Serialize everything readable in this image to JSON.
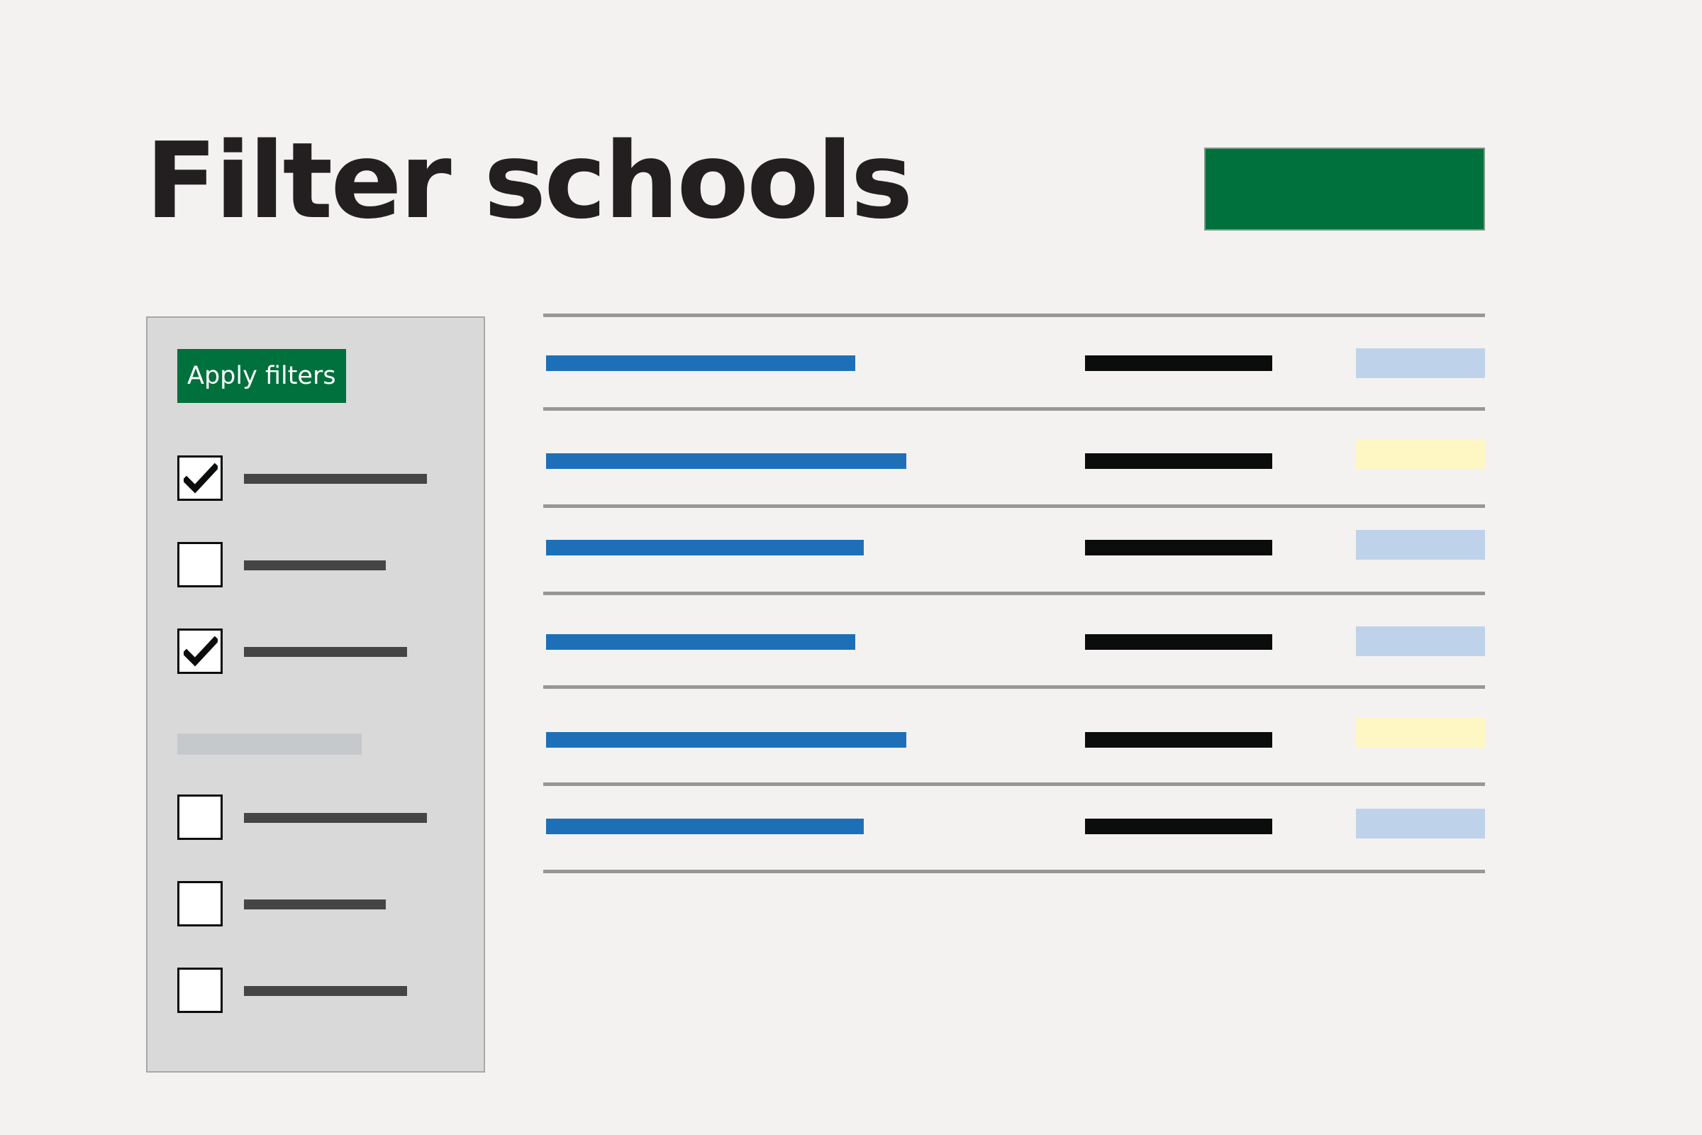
{
  "header": {
    "title": "Filter schools"
  },
  "filters": {
    "apply_label": "Apply filters",
    "groups": [
      {
        "options": [
          {
            "checked": true
          },
          {
            "checked": false
          },
          {
            "checked": true
          }
        ]
      },
      {
        "options": [
          {
            "checked": false
          },
          {
            "checked": false
          },
          {
            "checked": false
          }
        ]
      }
    ]
  },
  "results": {
    "rows": [
      {
        "tag_color": "blue"
      },
      {
        "tag_color": "yellow"
      },
      {
        "tag_color": "blue"
      },
      {
        "tag_color": "blue"
      },
      {
        "tag_color": "yellow"
      },
      {
        "tag_color": "blue"
      }
    ]
  },
  "colors": {
    "background": "#f3f2f1",
    "primary_button": "#00703c",
    "panel": "#d9d9d9",
    "link": "#1d70b8",
    "text": "#0b0c0c",
    "tag_blue": "#bed3ea",
    "tag_yellow": "#fef7c4",
    "divider": "#979797"
  },
  "icons": {
    "checkmark": "checkmark-icon"
  }
}
